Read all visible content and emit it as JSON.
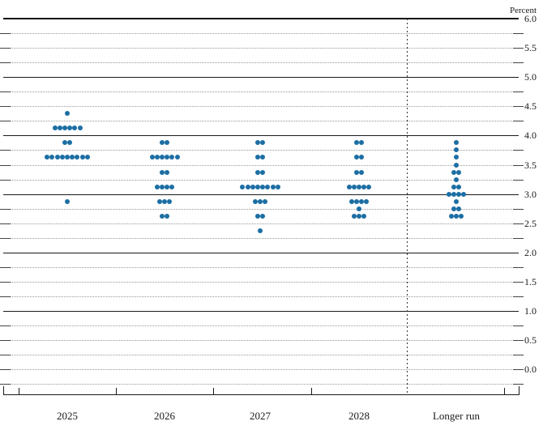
{
  "chart_data": {
    "type": "scatter",
    "subtype": "fomc-dot-plot",
    "title": "",
    "unit_label": "Percent",
    "xlabel": "",
    "ylabel": "Percent",
    "y_axis": {
      "unit": "Percent",
      "label_values": [
        6.0,
        5.5,
        5.0,
        4.5,
        4.0,
        3.5,
        3.0,
        2.5,
        2.0,
        1.5,
        1.0,
        0.5,
        0.0
      ],
      "solid_line_values": [
        6.0,
        5.0,
        4.0,
        3.0,
        2.0,
        1.0
      ],
      "tick_interval": 0.25,
      "ylim_labels": [
        0.0,
        6.0
      ],
      "grid": "dotted quarter-point lines, solid integer lines"
    },
    "categories": [
      "2025",
      "2026",
      "2027",
      "2028",
      "Longer run"
    ],
    "separator_before_category": "Longer run",
    "dot_color": "#1c6ea4",
    "series": [
      {
        "category": "2025",
        "dots": [
          {
            "value": 4.375,
            "count": 1
          },
          {
            "value": 4.125,
            "count": 6
          },
          {
            "value": 3.875,
            "count": 2
          },
          {
            "value": 3.625,
            "count": 9
          },
          {
            "value": 2.875,
            "count": 1
          }
        ]
      },
      {
        "category": "2026",
        "dots": [
          {
            "value": 3.875,
            "count": 2
          },
          {
            "value": 3.625,
            "count": 6
          },
          {
            "value": 3.375,
            "count": 2
          },
          {
            "value": 3.125,
            "count": 4
          },
          {
            "value": 2.875,
            "count": 3
          },
          {
            "value": 2.625,
            "count": 2
          }
        ]
      },
      {
        "category": "2027",
        "dots": [
          {
            "value": 3.875,
            "count": 2
          },
          {
            "value": 3.625,
            "count": 2
          },
          {
            "value": 3.375,
            "count": 2
          },
          {
            "value": 3.125,
            "count": 8
          },
          {
            "value": 2.875,
            "count": 3
          },
          {
            "value": 2.625,
            "count": 2
          },
          {
            "value": 2.375,
            "count": 1
          }
        ]
      },
      {
        "category": "2028",
        "dots": [
          {
            "value": 3.875,
            "count": 2
          },
          {
            "value": 3.625,
            "count": 2
          },
          {
            "value": 3.375,
            "count": 2
          },
          {
            "value": 3.125,
            "count": 5
          },
          {
            "value": 2.875,
            "count": 4
          },
          {
            "value": 2.75,
            "count": 1
          },
          {
            "value": 2.625,
            "count": 3
          }
        ]
      },
      {
        "category": "Longer run",
        "dots": [
          {
            "value": 3.875,
            "count": 1
          },
          {
            "value": 3.75,
            "count": 1
          },
          {
            "value": 3.625,
            "count": 1
          },
          {
            "value": 3.5,
            "count": 1
          },
          {
            "value": 3.375,
            "count": 2
          },
          {
            "value": 3.25,
            "count": 1
          },
          {
            "value": 3.125,
            "count": 2
          },
          {
            "value": 3.0,
            "count": 4
          },
          {
            "value": 2.875,
            "count": 1
          },
          {
            "value": 2.75,
            "count": 2
          },
          {
            "value": 2.625,
            "count": 3
          }
        ]
      }
    ]
  }
}
